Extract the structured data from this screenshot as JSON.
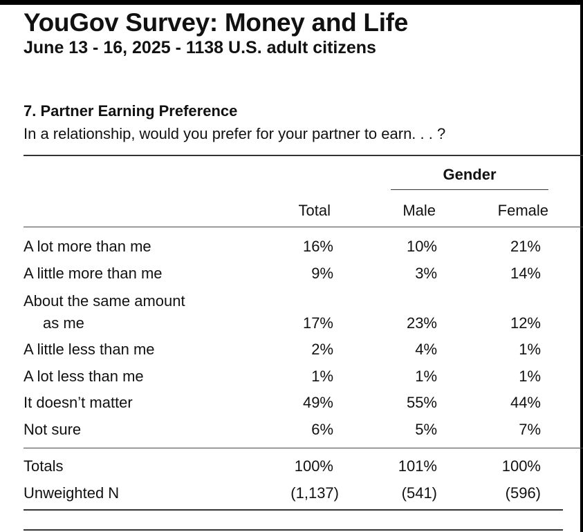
{
  "header": {
    "title": "YouGov Survey: Money and Life",
    "subtitle": "June 13 - 16, 2025 - 1138 U.S. adult citizens"
  },
  "question": {
    "title": "7. Partner Earning Preference",
    "text": "In a relationship, would you prefer for your partner to earn. . . ?"
  },
  "table": {
    "group_header": "Gender",
    "columns": [
      "Total",
      "Male",
      "Female"
    ],
    "rows": [
      {
        "label": "A lot more than me",
        "values": [
          "16%",
          "10%",
          "21%"
        ]
      },
      {
        "label": "A little more than me",
        "values": [
          "9%",
          "3%",
          "14%"
        ]
      },
      {
        "label": "About the same amount",
        "label2": "as me",
        "values": [
          "17%",
          "23%",
          "12%"
        ]
      },
      {
        "label": "A little less than me",
        "values": [
          "2%",
          "4%",
          "1%"
        ]
      },
      {
        "label": "A lot less than me",
        "values": [
          "1%",
          "1%",
          "1%"
        ]
      },
      {
        "label": "It doesn’t matter",
        "values": [
          "49%",
          "55%",
          "44%"
        ]
      },
      {
        "label": "Not sure",
        "values": [
          "6%",
          "5%",
          "7%"
        ]
      }
    ],
    "totals": {
      "label": "Totals",
      "values": [
        "100%",
        "101%",
        "100%"
      ]
    },
    "unweighted": {
      "label": "Unweighted N",
      "values": [
        "(1,137)",
        "(541)",
        "(596)"
      ]
    }
  }
}
